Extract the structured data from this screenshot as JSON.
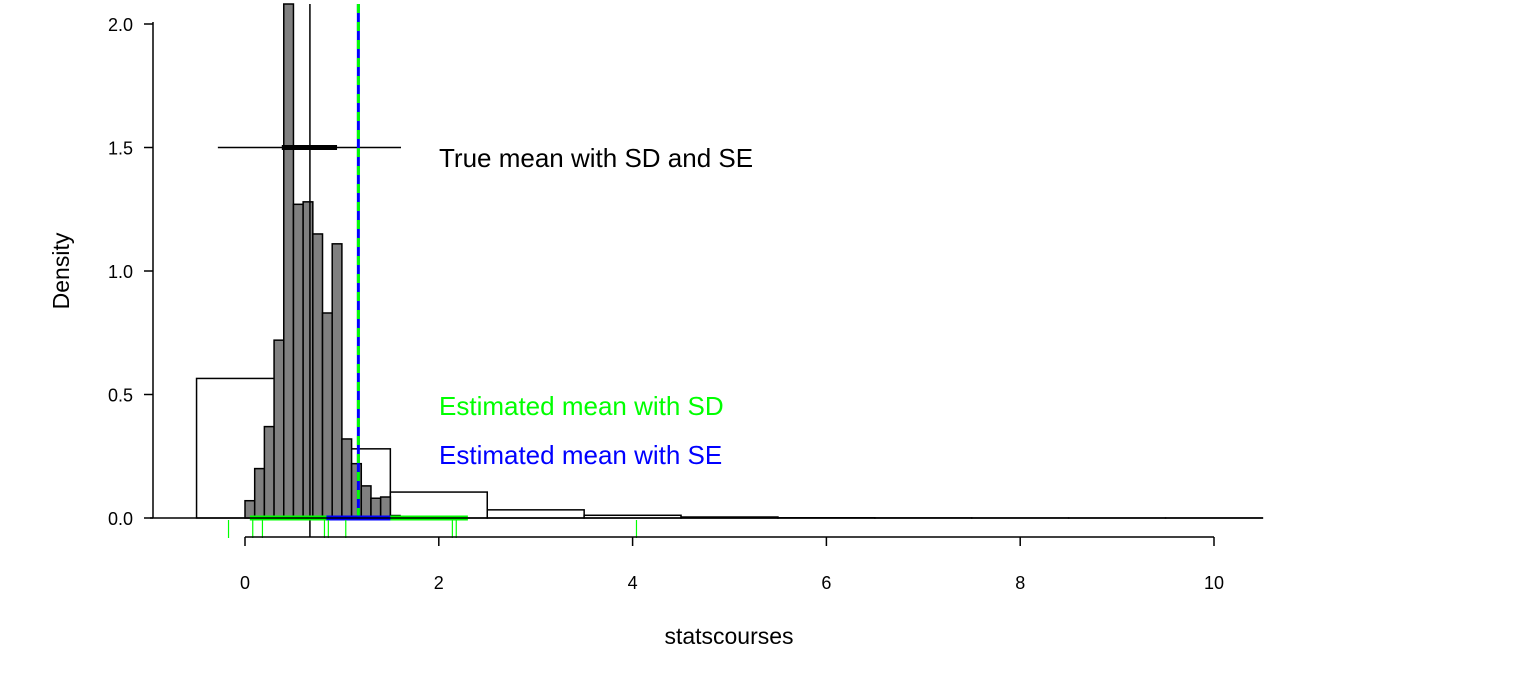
{
  "chart_data": {
    "type": "histogram",
    "xlabel": "statscourses",
    "ylabel": "Density",
    "xlim": [
      -0.6,
      10.5
    ],
    "ylim": [
      0,
      2.0
    ],
    "x_ticks": [
      0,
      2,
      4,
      6,
      8,
      10
    ],
    "y_ticks": [
      "0.0",
      "0.5",
      "1.0",
      "1.5",
      "2.0"
    ],
    "population_histogram": {
      "bin_width": 1,
      "bins": [
        {
          "x0": -0.5,
          "x1": 0.5,
          "density": 0.565
        },
        {
          "x0": 0.5,
          "x1": 1.5,
          "density": 0.28
        },
        {
          "x0": 1.5,
          "x1": 2.5,
          "density": 0.105
        },
        {
          "x0": 2.5,
          "x1": 3.5,
          "density": 0.033
        },
        {
          "x0": 3.5,
          "x1": 4.5,
          "density": 0.011
        },
        {
          "x0": 4.5,
          "x1": 5.5,
          "density": 0.004
        },
        {
          "x0": 5.5,
          "x1": 6.5,
          "density": 0.001
        },
        {
          "x0": 6.5,
          "x1": 7.5,
          "density": 0.0005
        },
        {
          "x0": 7.5,
          "x1": 8.5,
          "density": 0.0002
        },
        {
          "x0": 8.5,
          "x1": 9.5,
          "density": 0.0001
        },
        {
          "x0": 9.5,
          "x1": 10.5,
          "density": 0.0001
        }
      ]
    },
    "sampling_distribution_histogram": {
      "bin_width": 0.1,
      "bins": [
        {
          "x0": 0.0,
          "x1": 0.1,
          "density": 0.07
        },
        {
          "x0": 0.1,
          "x1": 0.2,
          "density": 0.2
        },
        {
          "x0": 0.2,
          "x1": 0.3,
          "density": 0.37
        },
        {
          "x0": 0.3,
          "x1": 0.4,
          "density": 0.72
        },
        {
          "x0": 0.4,
          "x1": 0.5,
          "density": 2.1
        },
        {
          "x0": 0.5,
          "x1": 0.6,
          "density": 1.27
        },
        {
          "x0": 0.6,
          "x1": 0.7,
          "density": 1.28
        },
        {
          "x0": 0.7,
          "x1": 0.8,
          "density": 1.15
        },
        {
          "x0": 0.8,
          "x1": 0.9,
          "density": 0.83
        },
        {
          "x0": 0.9,
          "x1": 1.0,
          "density": 1.11
        },
        {
          "x0": 1.0,
          "x1": 1.1,
          "density": 0.32
        },
        {
          "x0": 1.1,
          "x1": 1.2,
          "density": 0.22
        },
        {
          "x0": 1.2,
          "x1": 1.3,
          "density": 0.13
        },
        {
          "x0": 1.3,
          "x1": 1.4,
          "density": 0.08
        },
        {
          "x0": 1.4,
          "x1": 1.5,
          "density": 0.085
        },
        {
          "x0": 1.5,
          "x1": 1.6,
          "density": 0.01
        }
      ]
    },
    "true_mean": 0.67,
    "true_sd_interval": [
      -0.28,
      1.61
    ],
    "true_se_interval": [
      0.38,
      0.95
    ],
    "true_interval_y": 1.5,
    "estimated_mean": 1.17,
    "estimated_sd_interval": [
      0.05,
      2.3
    ],
    "estimated_se_interval": [
      0.84,
      1.5
    ],
    "sample_rug": [
      -0.17,
      0.08,
      0.18,
      0.82,
      0.86,
      1.04,
      2.14,
      2.18,
      4.04
    ],
    "colors": {
      "true": "#000000",
      "sd_estimate": "#00ff00",
      "se_estimate": "#0000ff",
      "sampling_bars": "#808080",
      "population_bars": "#ffffff"
    },
    "annotations": {
      "true": "True mean with SD and SE",
      "sd": "Estimated mean with SD",
      "se": "Estimated mean with SE"
    }
  }
}
